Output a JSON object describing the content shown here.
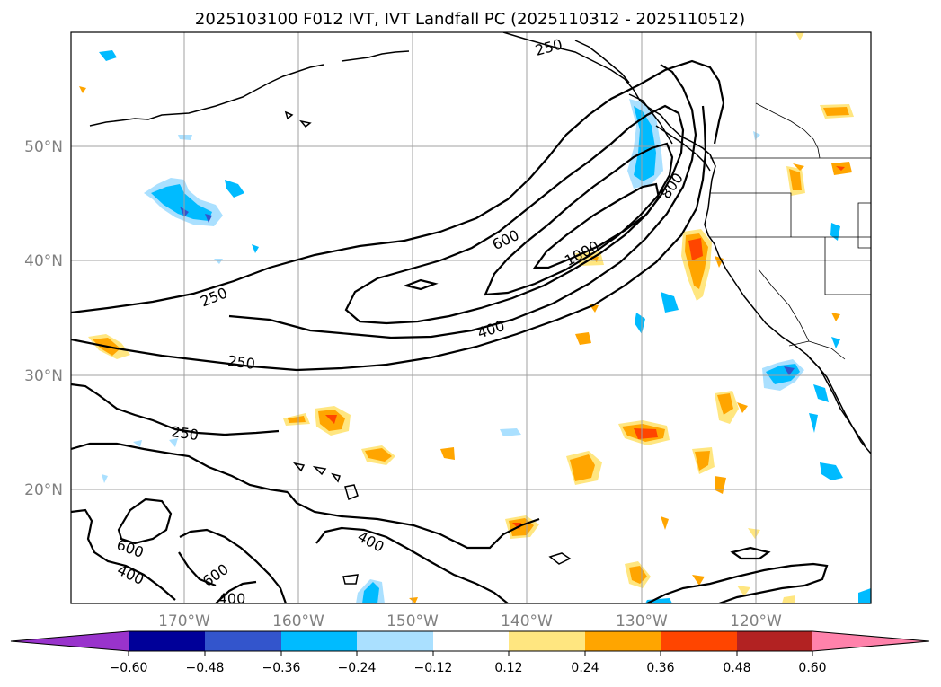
{
  "title": "2025103100 F012 IVT, IVT Landfall PC (2025110312 - 2025110512)",
  "map": {
    "lat_labels": [
      "50°N",
      "40°N",
      "30°N",
      "20°N"
    ],
    "lon_labels": [
      "170°W",
      "160°W",
      "150°W",
      "140°W",
      "130°W",
      "120°W"
    ]
  },
  "contour_labels": [
    "250",
    "250",
    "250",
    "250",
    "400",
    "600",
    "800",
    "1000",
    "600",
    "400",
    "600",
    "400",
    "400"
  ],
  "colorbar": {
    "ticks": [
      "−0.60",
      "−0.48",
      "−0.36",
      "−0.24",
      "−0.12",
      "0.12",
      "0.24",
      "0.36",
      "0.48",
      "0.60"
    ],
    "colors": {
      "under": "#9933cc",
      "c1": "#000099",
      "c2": "#3355cc",
      "c3": "#00bbff",
      "c4": "#aae0ff",
      "c5": "#ffffff",
      "c6": "#ffe680",
      "c7": "#ffa500",
      "c8": "#ff4500",
      "c9": "#b22222",
      "over": "#ff82ab"
    }
  }
}
